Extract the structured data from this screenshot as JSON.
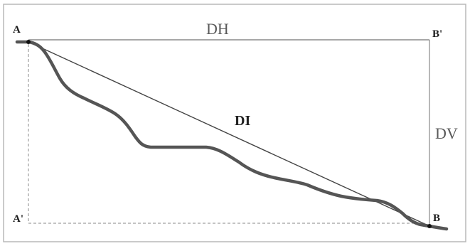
{
  "diagram": {
    "points": {
      "A": "A",
      "A_prime": "A'",
      "B": "B",
      "B_prime": "B'"
    },
    "labels": {
      "horizontal_distance": "DH",
      "vertical_distance": "DV",
      "inclined_distance": "DI"
    },
    "colors": {
      "frame": "#8a8a8a",
      "terrain": "#555555",
      "line": "#444444",
      "dashed": "#888888"
    }
  }
}
